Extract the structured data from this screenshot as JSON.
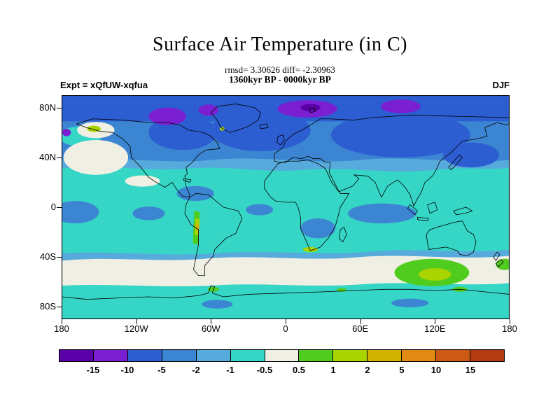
{
  "page": {
    "background_color": "#ffffff"
  },
  "title": "Surface Air Temperature (in C)",
  "subtitle_stats": "rmsd= 3.30626 diff= -2.30963",
  "subtitle_period": "1360kyr BP - 0000kyr BP",
  "expt_label": "Expt = xQfUW-xqfua",
  "season_label": "DJF",
  "axes": {
    "y_ticks": [
      "80N",
      "40N",
      "0",
      "40S",
      "80S"
    ],
    "x_ticks": [
      "180",
      "120W",
      "60W",
      "0",
      "60E",
      "120E",
      "180"
    ]
  },
  "colorbar": {
    "boundary_labels": [
      "-15",
      "-10",
      "-5",
      "-2",
      "-1",
      "-0.5",
      "0.5",
      "1",
      "2",
      "5",
      "10",
      "15"
    ],
    "segment_colors": [
      "#5a00a8",
      "#7a1fd2",
      "#2c5ed2",
      "#3c85d2",
      "#57aadc",
      "#36d6c6",
      "#f0efe4",
      "#50cc1e",
      "#aad400",
      "#d2b400",
      "#e08a14",
      "#cc5a14",
      "#b23c10"
    ]
  },
  "chart_data": {
    "type": "heatmap",
    "subtype": "filled-contour-world-map",
    "title": "Surface Air Temperature (in C)",
    "units": "C",
    "season": "DJF",
    "experiment": "Expt = xQfUW-xqfua",
    "period": "1360kyr BP - 0000kyr BP",
    "statistics": {
      "rmsd": 3.30626,
      "diff": -2.30963
    },
    "contour_levels": [
      -15,
      -10,
      -5,
      -2,
      -1,
      -0.5,
      0.5,
      1,
      2,
      5,
      10,
      15
    ],
    "x_axis": {
      "tick_labels": [
        "180",
        "120W",
        "60W",
        "0",
        "60E",
        "120E",
        "180"
      ],
      "range_deg_lon": [
        -180,
        180
      ]
    },
    "y_axis": {
      "tick_labels": [
        "80N",
        "40N",
        "0",
        "40S",
        "80S"
      ],
      "range_deg_lat": [
        -90,
        90
      ]
    },
    "legend_position": "bottom",
    "notable_features": [
      "Most oceans and continents cooler by 0.5 to 5 C (blue and cyan shading)",
      "Strongest cooling (-10 to -15 C, purple) over Arctic seas: Barents/Kara, Laptev, Canadian archipelago and north of Greenland",
      "Near-zero band (white, -0.5 to 0.5 C) across the Southern Ocean around 45S-65S and over the NE Pacific / Alaska region",
      "Slight warming (0.5 to 2 C, green / yellow-green) south of Australia, along the Andes, at the southern tip of Africa and spots on the Antarctic coast"
    ]
  }
}
